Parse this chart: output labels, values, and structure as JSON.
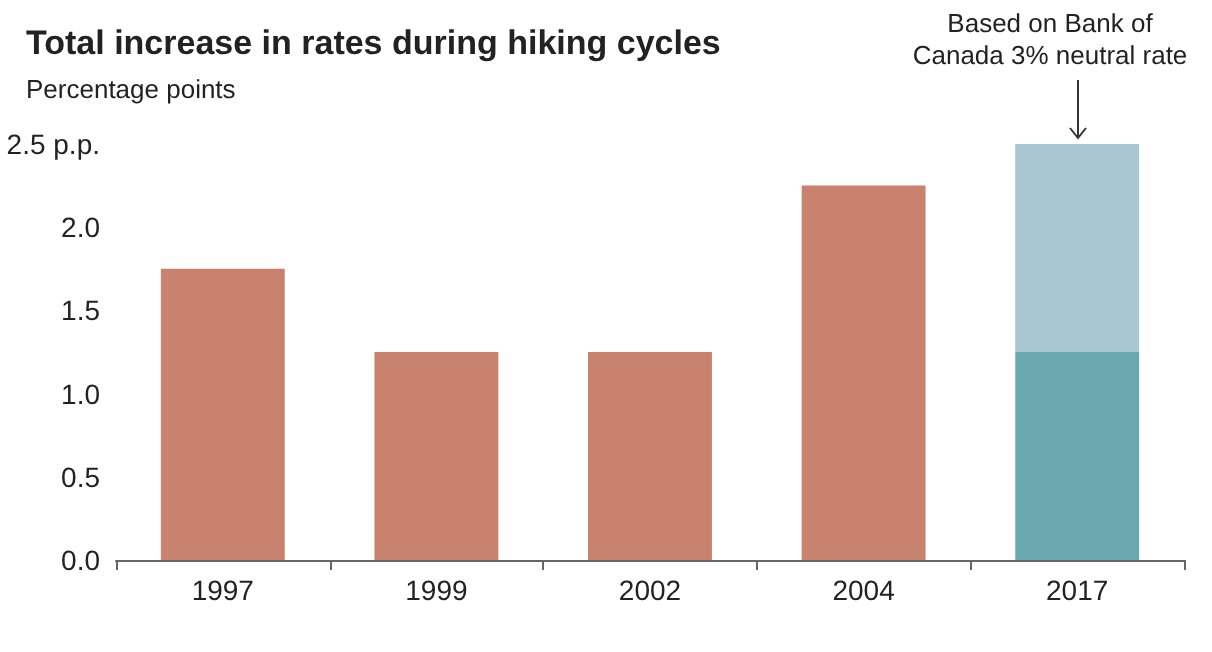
{
  "chart_data": {
    "type": "bar",
    "title": "Total increase in rates during hiking cycles",
    "subtitle": "Percentage points",
    "categories": [
      "1997",
      "1999",
      "2002",
      "2004",
      "2017"
    ],
    "stacked": true,
    "series": [
      {
        "colors": [
          "#c8826e",
          "#c8826e",
          "#c8826e",
          "#c8826e",
          "#6aa8b0"
        ],
        "values": [
          1.75,
          1.25,
          1.25,
          2.25,
          1.25
        ]
      },
      {
        "color": "#a9c7d0",
        "values": [
          null,
          null,
          null,
          null,
          1.25
        ]
      }
    ],
    "ylim": [
      0,
      2.5
    ],
    "yticks": [
      {
        "value": 0,
        "label": "0.0"
      },
      {
        "value": 0.5,
        "label": "0.5"
      },
      {
        "value": 1,
        "label": "1.0"
      },
      {
        "value": 1.5,
        "label": "1.5"
      },
      {
        "value": 2,
        "label": "2.0"
      },
      {
        "value": 2.5,
        "label": "2.5 p.p."
      }
    ],
    "annotations": [
      {
        "text": "Based on Bank of Canada 3% neutral rate",
        "x": "2017",
        "y": 2.5
      }
    ],
    "grid": false
  }
}
